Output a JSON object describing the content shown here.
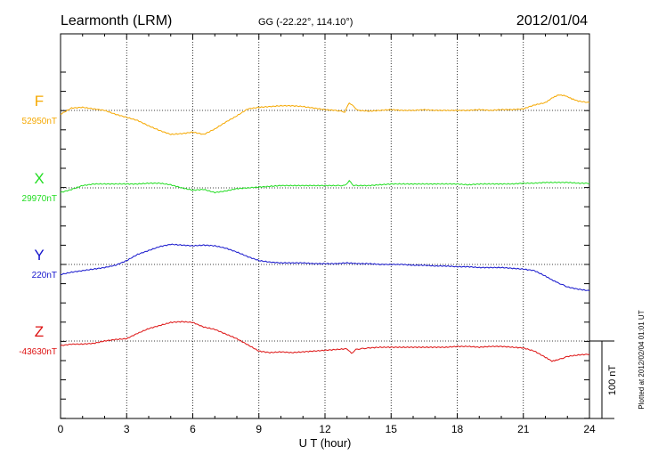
{
  "header": {
    "station": "Learmonth (LRM)",
    "coords": "GG (-22.22°, 114.10°)",
    "date": "2012/01/04"
  },
  "footer": {
    "plotted": "Plotted at 2012/02/04 01:01  UT"
  },
  "chart_data": {
    "type": "line",
    "xlabel": "U T (hour)",
    "xlim": [
      0,
      24
    ],
    "xticks": [
      0,
      3,
      6,
      9,
      12,
      15,
      18,
      21,
      24
    ],
    "scale_bar": {
      "label": "100 nT",
      "value_nT": 100
    },
    "series": [
      {
        "name": "F",
        "baseline_label": "52950nT",
        "color": "#f5a800",
        "x": [
          0,
          0.5,
          1,
          1.5,
          2,
          2.5,
          3,
          3.5,
          4,
          4.5,
          5,
          5.5,
          6,
          6.5,
          7,
          7.5,
          8,
          8.5,
          9,
          9.5,
          10,
          10.5,
          11,
          11.5,
          12,
          12.5,
          12.9,
          13.1,
          13.3,
          13.5,
          14,
          14.5,
          15,
          15.5,
          16,
          16.5,
          17,
          17.5,
          18,
          18.5,
          19,
          19.5,
          20,
          20.5,
          21,
          21.5,
          22,
          22.3,
          22.6,
          22.9,
          23.2,
          23.5,
          24
        ],
        "y": [
          -5,
          3,
          4,
          2,
          0,
          -5,
          -9,
          -13,
          -20,
          -26,
          -31,
          -30,
          -28,
          -31,
          -24,
          -15,
          -7,
          2,
          4,
          5,
          6,
          6,
          5,
          3,
          1,
          0,
          -2,
          10,
          5,
          0,
          -1,
          0,
          1,
          0,
          0,
          1,
          0,
          0,
          0,
          0,
          1,
          0,
          1,
          1,
          2,
          7,
          10,
          16,
          20,
          19,
          15,
          12,
          10
        ]
      },
      {
        "name": "X",
        "baseline_label": "29970nT",
        "color": "#22dd22",
        "x": [
          0,
          0.5,
          1,
          1.5,
          2,
          2.5,
          3,
          3.5,
          4,
          4.5,
          5,
          5.5,
          6,
          6.5,
          7,
          7.5,
          8,
          8.5,
          9,
          9.5,
          10,
          10.5,
          11,
          11.5,
          12,
          12.5,
          12.9,
          13.1,
          13.3,
          13.5,
          14,
          14.5,
          15,
          15.5,
          16,
          16.5,
          17,
          17.5,
          18,
          18.5,
          19,
          19.5,
          20,
          20.5,
          21,
          21.5,
          22,
          22.5,
          23,
          23.5,
          24
        ],
        "y": [
          -6,
          -2,
          3,
          5,
          5,
          5,
          5,
          5,
          6,
          6,
          4,
          0,
          -3,
          -2,
          -6,
          -4,
          -1,
          0,
          1,
          2,
          3,
          3,
          3,
          3,
          3,
          3,
          3,
          9,
          3,
          3,
          3,
          4,
          5,
          5,
          5,
          5,
          5,
          5,
          5,
          4,
          5,
          5,
          5,
          5,
          6,
          6,
          7,
          7,
          7,
          6,
          6
        ]
      },
      {
        "name": "Y",
        "baseline_label": "220nT",
        "color": "#1515cc",
        "x": [
          0,
          0.5,
          1,
          1.5,
          2,
          2.5,
          3,
          3.5,
          4,
          4.5,
          5,
          5.5,
          6,
          6.5,
          7,
          7.5,
          8,
          8.5,
          9,
          9.5,
          10,
          10.5,
          11,
          11.5,
          12,
          12.5,
          13,
          13.5,
          14,
          14.5,
          15,
          15.5,
          16,
          16.5,
          17,
          17.5,
          18,
          18.5,
          19,
          19.5,
          20,
          20.5,
          21,
          21.5,
          22,
          22.3,
          22.6,
          23,
          23.5,
          24
        ],
        "y": [
          -13,
          -10,
          -8,
          -6,
          -4,
          -1,
          5,
          13,
          18,
          23,
          26,
          25,
          24,
          25,
          24,
          21,
          16,
          10,
          5,
          3,
          2,
          2,
          2,
          1,
          1,
          1,
          2,
          1,
          1,
          0,
          0,
          0,
          -1,
          -1,
          -2,
          -2,
          -3,
          -3,
          -4,
          -4,
          -4,
          -5,
          -6,
          -8,
          -15,
          -20,
          -24,
          -29,
          -32,
          -34
        ]
      },
      {
        "name": "Z",
        "baseline_label": "-43630nT",
        "color": "#dd1111",
        "x": [
          0,
          0.5,
          1,
          1.5,
          2,
          2.5,
          3,
          3.5,
          4,
          4.5,
          5,
          5.5,
          6,
          6.5,
          7,
          7.5,
          8,
          8.5,
          9,
          9.5,
          10,
          10.5,
          11,
          11.5,
          12,
          12.5,
          13,
          13.2,
          13.4,
          13.6,
          14,
          14.5,
          15,
          15.5,
          16,
          16.5,
          17,
          17.5,
          18,
          18.5,
          19,
          19.5,
          20,
          20.5,
          21,
          21.5,
          22,
          22.3,
          22.6,
          23,
          23.5,
          24
        ],
        "y": [
          -6,
          -4,
          -4,
          -3,
          0,
          2,
          3,
          10,
          16,
          20,
          24,
          25,
          24,
          18,
          15,
          9,
          3,
          -5,
          -13,
          -15,
          -14,
          -15,
          -14,
          -13,
          -12,
          -11,
          -10,
          -16,
          -11,
          -10,
          -9,
          -8,
          -8,
          -8,
          -8,
          -8,
          -8,
          -8,
          -7,
          -7,
          -8,
          -7,
          -7,
          -8,
          -9,
          -13,
          -21,
          -26,
          -24,
          -20,
          -18,
          -17
        ]
      }
    ]
  }
}
